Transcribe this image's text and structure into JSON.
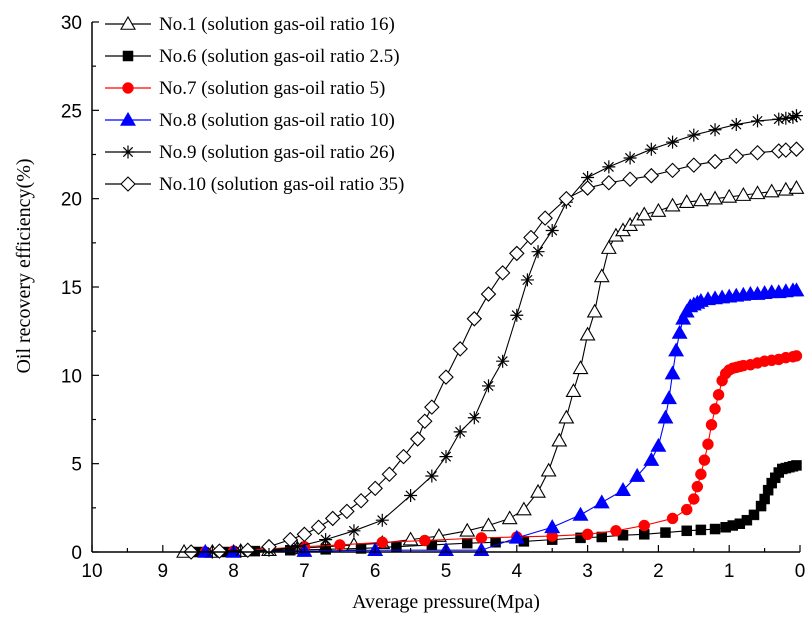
{
  "chart_data": {
    "type": "line",
    "title": "",
    "xlabel": "Average pressure(Mpa)",
    "ylabel": "Oil recovery efficiency(%)",
    "xlim": [
      10,
      0
    ],
    "ylim": [
      0,
      30
    ],
    "x_reversed": true,
    "xticks": [
      10,
      9,
      8,
      7,
      6,
      5,
      4,
      3,
      2,
      1,
      0
    ],
    "yticks": [
      0,
      5,
      10,
      15,
      20,
      25,
      30
    ],
    "grid": false,
    "legend_position": "top-left",
    "series": [
      {
        "name": "No.1 (solution gas-oil ratio 16)",
        "color": "#000000",
        "marker": "triangle-open",
        "x": [
          8.7,
          8.3,
          7.9,
          7.5,
          7.1,
          6.7,
          6.3,
          5.9,
          5.5,
          5.1,
          4.7,
          4.4,
          4.1,
          3.9,
          3.7,
          3.55,
          3.4,
          3.3,
          3.2,
          3.1,
          3.0,
          2.9,
          2.8,
          2.7,
          2.6,
          2.5,
          2.4,
          2.3,
          2.2,
          2.0,
          1.8,
          1.6,
          1.4,
          1.2,
          1.0,
          0.8,
          0.6,
          0.4,
          0.2,
          0.05
        ],
        "y": [
          0,
          0,
          0.05,
          0.1,
          0.2,
          0.3,
          0.4,
          0.5,
          0.7,
          0.9,
          1.2,
          1.5,
          1.9,
          2.4,
          3.4,
          4.6,
          6.3,
          7.6,
          9.1,
          10.4,
          12.3,
          13.6,
          15.6,
          17.2,
          17.9,
          18.2,
          18.5,
          18.8,
          19.1,
          19.3,
          19.6,
          19.8,
          19.9,
          20.0,
          20.1,
          20.2,
          20.3,
          20.4,
          20.5,
          20.6
        ]
      },
      {
        "name": "No.6 (solution gas-oil ratio 2.5)",
        "color": "#000000",
        "marker": "square-filled",
        "x": [
          8.5,
          8.1,
          7.7,
          7.2,
          6.7,
          6.2,
          5.7,
          5.2,
          4.7,
          4.3,
          3.9,
          3.5,
          3.1,
          2.8,
          2.5,
          2.2,
          1.9,
          1.6,
          1.4,
          1.2,
          1.05,
          0.95,
          0.85,
          0.75,
          0.65,
          0.55,
          0.5,
          0.45,
          0.4,
          0.35,
          0.3,
          0.25,
          0.2,
          0.15,
          0.1,
          0.05
        ],
        "y": [
          0,
          0,
          0.05,
          0.1,
          0.15,
          0.2,
          0.3,
          0.4,
          0.5,
          0.55,
          0.6,
          0.7,
          0.8,
          0.85,
          0.95,
          1.0,
          1.1,
          1.2,
          1.25,
          1.3,
          1.4,
          1.5,
          1.6,
          1.8,
          2.1,
          2.6,
          3.0,
          3.5,
          3.9,
          4.2,
          4.5,
          4.7,
          4.75,
          4.8,
          4.85,
          4.9
        ]
      },
      {
        "name": "No.7 (solution gas-oil ratio 5)",
        "color": "#ff0000",
        "marker": "circle-filled",
        "x": [
          8.4,
          8.0,
          7.0,
          6.5,
          5.9,
          5.3,
          4.5,
          4.0,
          3.5,
          3.0,
          2.6,
          2.2,
          1.8,
          1.6,
          1.5,
          1.45,
          1.4,
          1.35,
          1.3,
          1.25,
          1.2,
          1.15,
          1.1,
          1.05,
          1.0,
          0.95,
          0.9,
          0.85,
          0.8,
          0.7,
          0.6,
          0.5,
          0.4,
          0.3,
          0.2,
          0.1,
          0.05
        ],
        "y": [
          0,
          0.05,
          0.3,
          0.4,
          0.55,
          0.65,
          0.8,
          0.85,
          0.9,
          1.0,
          1.2,
          1.5,
          1.9,
          2.4,
          3.0,
          3.7,
          4.4,
          5.2,
          6.1,
          7.2,
          8.1,
          8.9,
          9.7,
          10.1,
          10.3,
          10.4,
          10.45,
          10.5,
          10.55,
          10.6,
          10.7,
          10.8,
          10.85,
          10.9,
          11.0,
          11.05,
          11.1
        ]
      },
      {
        "name": "No.8 (solution gas-oil ratio 10)",
        "color": "#0000ff",
        "marker": "triangle-filled",
        "x": [
          8.4,
          8.0,
          7.0,
          6.0,
          5.0,
          4.5,
          4.0,
          3.5,
          3.1,
          2.8,
          2.5,
          2.3,
          2.1,
          2.0,
          1.9,
          1.85,
          1.8,
          1.75,
          1.7,
          1.65,
          1.6,
          1.55,
          1.5,
          1.45,
          1.4,
          1.3,
          1.2,
          1.1,
          1.0,
          0.9,
          0.8,
          0.7,
          0.6,
          0.5,
          0.4,
          0.3,
          0.2,
          0.1,
          0.05
        ],
        "y": [
          0,
          0,
          0.05,
          0.1,
          0.1,
          0.1,
          0.8,
          1.4,
          2.1,
          2.8,
          3.5,
          4.3,
          5.2,
          6.0,
          7.6,
          8.7,
          10.1,
          11.4,
          12.4,
          13.2,
          13.6,
          13.9,
          14.0,
          14.1,
          14.2,
          14.3,
          14.35,
          14.4,
          14.45,
          14.5,
          14.55,
          14.6,
          14.6,
          14.65,
          14.7,
          14.7,
          14.75,
          14.8,
          14.8
        ]
      },
      {
        "name": "No.9 (solution gas-oil ratio 26)",
        "color": "#000000",
        "marker": "asterisk",
        "x": [
          8.3,
          7.9,
          7.5,
          7.1,
          6.7,
          6.3,
          5.9,
          5.5,
          5.2,
          5.0,
          4.8,
          4.6,
          4.4,
          4.2,
          4.0,
          3.85,
          3.7,
          3.5,
          3.3,
          3.0,
          2.7,
          2.4,
          2.1,
          1.8,
          1.5,
          1.2,
          0.9,
          0.6,
          0.3,
          0.2,
          0.1,
          0.05
        ],
        "y": [
          0,
          0.05,
          0.1,
          0.3,
          0.7,
          1.2,
          1.8,
          3.2,
          4.3,
          5.4,
          6.8,
          7.6,
          9.4,
          10.8,
          13.4,
          15.4,
          17.0,
          18.2,
          19.8,
          21.2,
          21.8,
          22.3,
          22.8,
          23.2,
          23.6,
          23.9,
          24.2,
          24.4,
          24.5,
          24.55,
          24.6,
          24.7
        ]
      },
      {
        "name": "No.10 (solution gas-oil ratio 35)",
        "color": "#000000",
        "marker": "diamond-open",
        "x": [
          8.6,
          8.2,
          7.8,
          7.5,
          7.2,
          7.0,
          6.8,
          6.6,
          6.4,
          6.2,
          6.0,
          5.8,
          5.6,
          5.4,
          5.3,
          5.2,
          5.0,
          4.8,
          4.6,
          4.4,
          4.2,
          4.0,
          3.8,
          3.6,
          3.3,
          3.0,
          2.7,
          2.4,
          2.1,
          1.8,
          1.5,
          1.2,
          0.9,
          0.6,
          0.3,
          0.2,
          0.05
        ],
        "y": [
          0,
          0.05,
          0.1,
          0.3,
          0.7,
          1.0,
          1.4,
          1.9,
          2.3,
          2.9,
          3.6,
          4.4,
          5.4,
          6.4,
          7.4,
          8.2,
          9.9,
          11.5,
          13.2,
          14.6,
          15.8,
          16.9,
          17.8,
          18.9,
          20.0,
          20.6,
          20.9,
          21.1,
          21.3,
          21.6,
          21.9,
          22.1,
          22.4,
          22.6,
          22.7,
          22.75,
          22.8
        ]
      }
    ]
  }
}
